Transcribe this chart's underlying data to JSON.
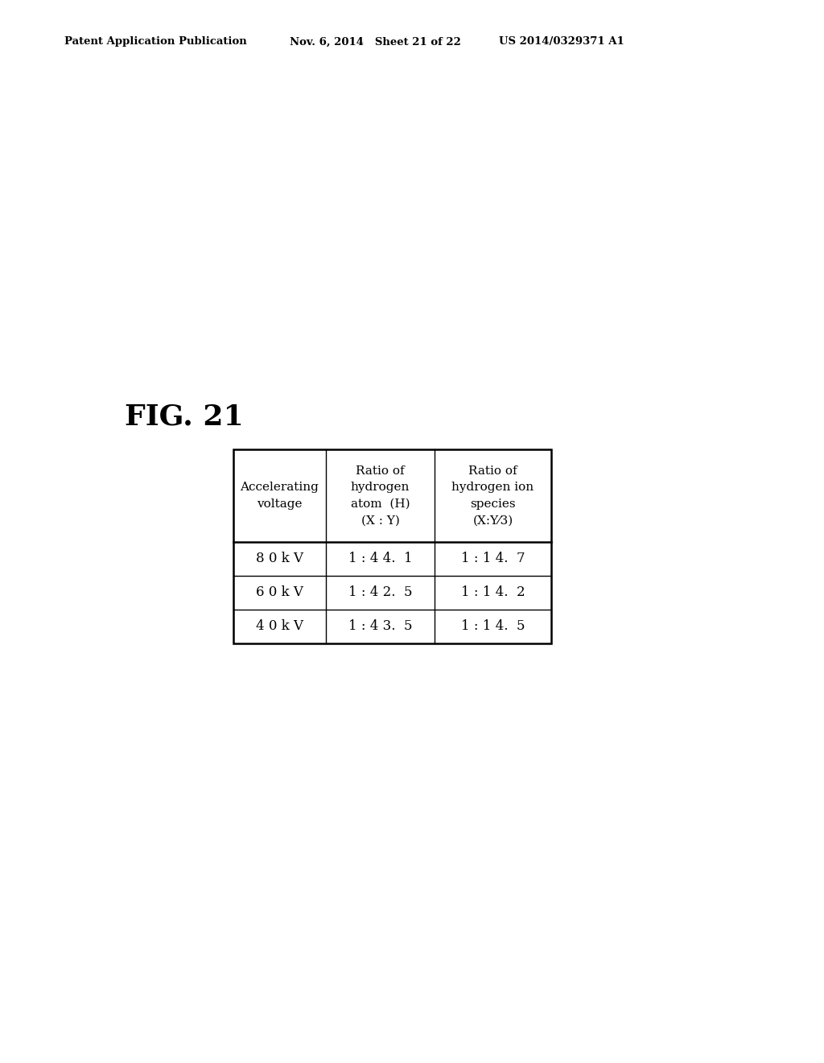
{
  "header_left": "Patent Application Publication",
  "header_mid": "Nov. 6, 2014   Sheet 21 of 22",
  "header_right": "US 2014/0329371 A1",
  "fig_label": "FIG. 21",
  "col_headers": [
    "Accelerating\nvoltage",
    "Ratio of\nhydrogen\natom  (H)\n(X : Y)",
    "Ratio of\nhydrogen ion\nspecies\n(X:Y⁄3)"
  ],
  "rows": [
    [
      "8 0 k V",
      "1 : 4 4.  1",
      "1 : 1 4.  7"
    ],
    [
      "6 0 k V",
      "1 : 4 2.  5",
      "1 : 1 4.  2"
    ],
    [
      "4 0 k V",
      "1 : 4 3.  5",
      "1 : 1 4.  5"
    ]
  ],
  "background_color": "#ffffff",
  "text_color": "#000000",
  "header_font_size": 9.5,
  "fig_label_font_size": 26,
  "table_header_font_size": 11,
  "cell_font_size": 12
}
